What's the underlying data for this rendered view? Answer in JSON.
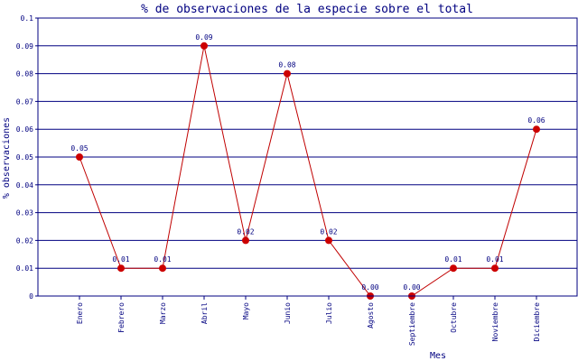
{
  "chart_data": {
    "type": "line",
    "title": "% de observaciones de la especie sobre el total",
    "xlabel": "Mes",
    "ylabel": "% observaciones",
    "ylim": [
      0,
      0.1
    ],
    "yticks": [
      "0",
      "0.01",
      "0.02",
      "0.03",
      "0.04",
      "0.05",
      "0.06",
      "0.07",
      "0.08",
      "0.09",
      "0.1"
    ],
    "grid": true,
    "categories": [
      "Enero",
      "Febrero",
      "Marzo",
      "Abril",
      "Mayo",
      "Junio",
      "Julio",
      "Agosto",
      "Septiembre",
      "Octubre",
      "Noviembre",
      "Diciembre"
    ],
    "values": [
      0.05,
      0.01,
      0.01,
      0.09,
      0.02,
      0.08,
      0.02,
      0.0,
      0.0,
      0.01,
      0.01,
      0.06
    ],
    "data_labels": [
      "0.05",
      "0.01",
      "0.01",
      "0.09",
      "0.02",
      "0.08",
      "0.02",
      "0.00",
      "0.00",
      "0.01",
      "0.01",
      "0.06"
    ],
    "colors": {
      "line": "#c00000",
      "marker": "#cc0000",
      "grid": "#000080",
      "text": "#000080"
    }
  }
}
